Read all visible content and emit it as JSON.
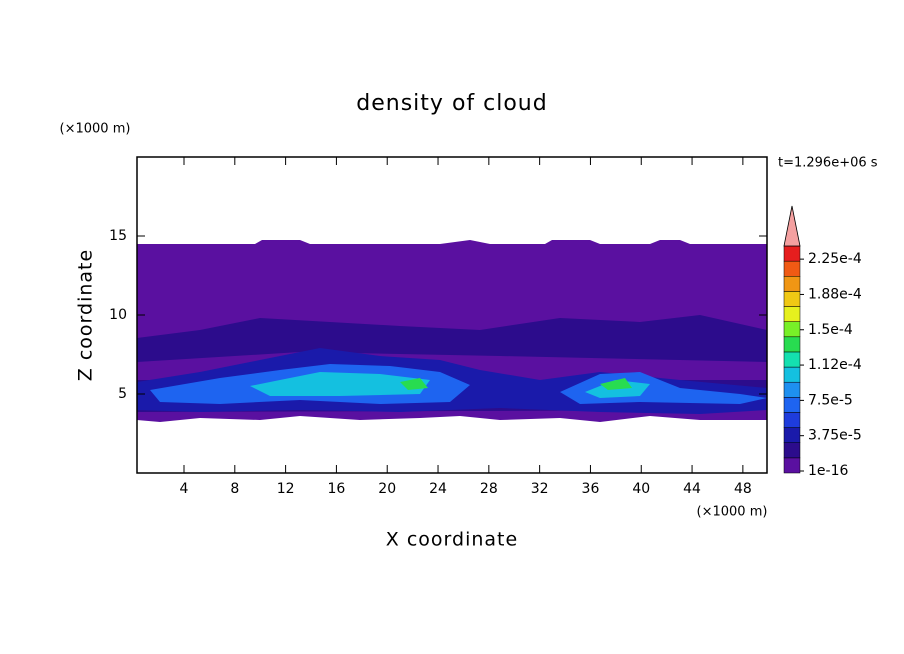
{
  "chart_data": {
    "type": "contour",
    "title": "density of cloud",
    "x_label": "X coordinate",
    "y_label": "Z coordinate",
    "x_unit": "(×1000 m)",
    "y_unit": "(×1000 m)",
    "time_label": "t=1.296e+06 s",
    "xlim": [
      0.3,
      49.9
    ],
    "xticks": [
      4,
      8,
      12,
      16,
      20,
      24,
      28,
      32,
      36,
      40,
      44,
      48
    ],
    "ylim": [
      0,
      20
    ],
    "yticks": [
      5,
      10,
      15
    ],
    "colorbar": {
      "ticks": [
        1e-16,
        {
          "value": 3.75e-05,
          "label": "3.75e-5"
        },
        {
          "value": 7.5e-05,
          "label": "7.5e-5"
        },
        {
          "value": 0.000112,
          "label": "1.12e-4"
        },
        {
          "value": 0.00015,
          "label": "1.5e-4"
        },
        {
          "value": 0.000188,
          "label": "1.88e-4"
        },
        {
          "value": 0.000225,
          "label": "2.25e-4"
        }
      ],
      "colors": [
        "#5a10a0",
        "#2c0c8c",
        "#1a1aaa",
        "#1e3cdc",
        "#1e64f0",
        "#1e90f0",
        "#14c0e0",
        "#14e0b0",
        "#28dc50",
        "#78f028",
        "#e6f01e",
        "#f0c814",
        "#f09614",
        "#f05a14",
        "#e61e1e"
      ],
      "extend_color": "#f4a0a0"
    }
  }
}
